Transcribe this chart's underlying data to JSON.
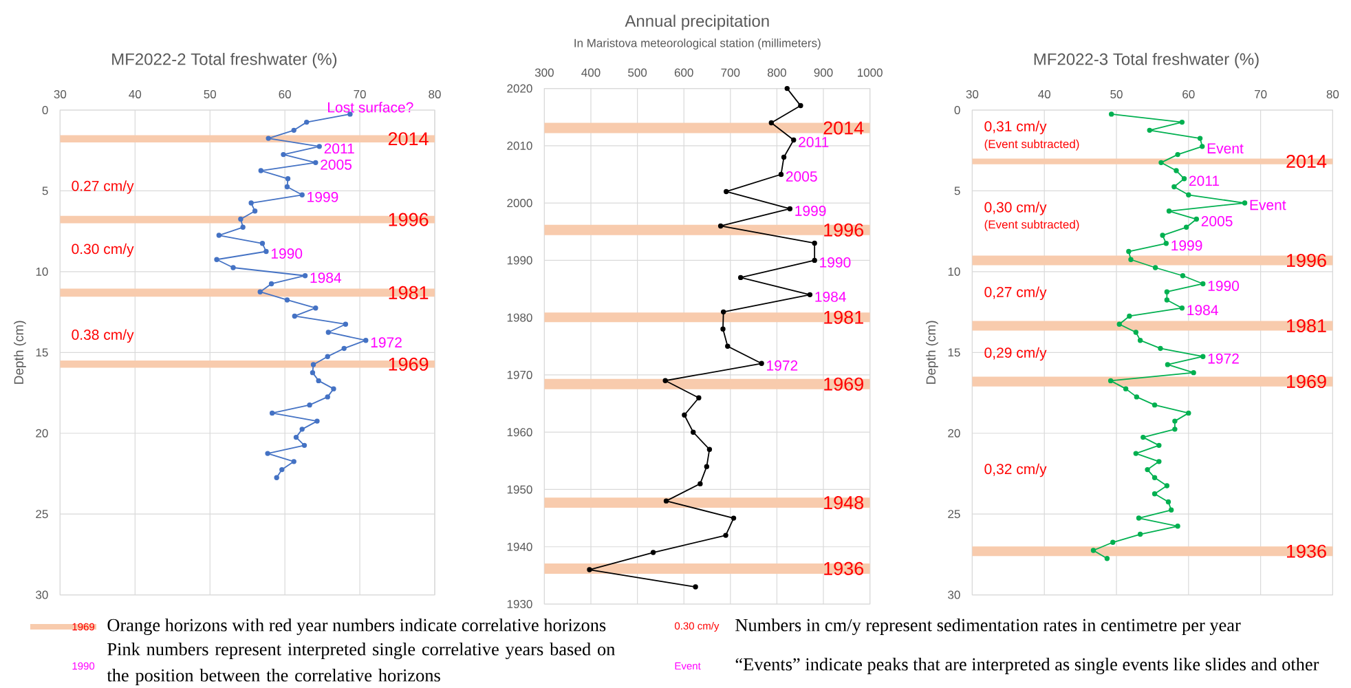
{
  "chart_data": [
    {
      "type": "line",
      "title": "MF2022-2 Total freshwater (%)",
      "ylabel": "Depth (cm)",
      "color": "#4472c4",
      "marker": "circle",
      "grid": true,
      "xlim": [
        30,
        80
      ],
      "xticks": [
        30,
        40,
        50,
        60,
        70,
        80
      ],
      "ylim": [
        30,
        0
      ],
      "yticks": [
        0,
        5,
        10,
        15,
        20,
        25,
        30
      ],
      "x": [
        68.7,
        62.9,
        61.2,
        57.8,
        64.6,
        59.8,
        64.1,
        56.8,
        60.4,
        60.3,
        62.3,
        55.5,
        56.0,
        54.1,
        54.4,
        51.2,
        57.0,
        57.5,
        50.9,
        53.1,
        62.7,
        58.2,
        56.7,
        60.3,
        64.1,
        61.3,
        68.1,
        65.8,
        70.8,
        67.9,
        65.7,
        63.8,
        63.7,
        64.5,
        66.5,
        65.7,
        63.3,
        58.3,
        64.3,
        62.3,
        61.5,
        62.6,
        57.7,
        61.2,
        59.6,
        58.9
      ],
      "values": [
        0.25,
        0.75,
        1.25,
        1.75,
        2.25,
        2.75,
        3.25,
        3.75,
        4.25,
        4.75,
        5.25,
        5.75,
        6.25,
        6.75,
        7.25,
        7.75,
        8.25,
        8.75,
        9.25,
        9.75,
        10.25,
        10.75,
        11.25,
        11.75,
        12.25,
        12.75,
        13.25,
        13.75,
        14.25,
        14.75,
        15.25,
        15.75,
        16.25,
        16.75,
        17.25,
        17.75,
        18.25,
        18.75,
        19.25,
        19.75,
        20.25,
        20.75,
        21.25,
        21.75,
        22.25,
        22.75
      ],
      "bands": [
        {
          "axis": "y",
          "from": 1.55,
          "to": 2.0,
          "label": "2014",
          "color": "#f8cbad"
        },
        {
          "axis": "y",
          "from": 6.55,
          "to": 7.0,
          "label": "1996",
          "color": "#f8cbad"
        },
        {
          "axis": "y",
          "from": 11.05,
          "to": 11.55,
          "label": "1981",
          "color": "#f8cbad"
        },
        {
          "axis": "y",
          "from": 15.5,
          "to": 15.95,
          "label": "1969",
          "color": "#f8cbad"
        }
      ],
      "annotations": [
        {
          "text": "Lost surface?",
          "x": 68.7,
          "y": 0.25
        },
        {
          "text": "2011",
          "x": 64.6,
          "y": 2.25
        },
        {
          "text": "2005",
          "x": 64.1,
          "y": 3.25
        },
        {
          "text": "1999",
          "x": 62.3,
          "y": 5.25
        },
        {
          "text": "1990",
          "x": 57.5,
          "y": 8.75
        },
        {
          "text": "1984",
          "x": 62.7,
          "y": 10.25
        },
        {
          "text": "1972",
          "x": 70.8,
          "y": 14.25
        },
        "0.27 cm/y",
        "0.30 cm/y",
        "0.38 cm/y",
        "1969",
        "Orange horizons with red year numbers indicate correlative horizons",
        "1990",
        "Pink numbers represent interpreted single correlative years based on the position between the correlative horizons",
        "0.30 cm/y",
        "Numbers in cm/y represent sedimentation rates in centimetre per year",
        "Event",
        "“Events” indicate peaks that are interpreted as single events like slides and other"
      ]
    },
    {
      "type": "line",
      "title": "Annual precipitation",
      "subtitle": "In Maristova meteorological station (millimeters)",
      "color": "#000000",
      "marker": "circle",
      "grid": true,
      "xlim": [
        300,
        1000
      ],
      "xticks": [
        300,
        400,
        500,
        600,
        700,
        800,
        900,
        1000
      ],
      "ylim": [
        1930,
        2020
      ],
      "yticks": [
        1930,
        1940,
        1950,
        1960,
        1970,
        1980,
        1990,
        2000,
        2010,
        2020
      ],
      "x": [
        822,
        851,
        788,
        836,
        815,
        809,
        691,
        828,
        679,
        881,
        881,
        722,
        871,
        685,
        684,
        694,
        767,
        560,
        632,
        601,
        620,
        655,
        649,
        635,
        562,
        707,
        690,
        534,
        397,
        625
      ],
      "values": [
        2020,
        2017,
        2014,
        2011,
        2008,
        2005,
        2002,
        1999,
        1996,
        1993,
        1990,
        1987,
        1984,
        1981,
        1978,
        1975,
        1972,
        1969,
        1966,
        1963,
        1960,
        1957,
        1954,
        1951,
        1948,
        1945,
        1942,
        1939,
        1936,
        1933
      ],
      "bands": [
        {
          "axis": "y",
          "from": 2012.2,
          "to": 2014.0,
          "label": "2014",
          "color": "#f8cbad"
        },
        {
          "axis": "y",
          "from": 1994.4,
          "to": 1996.2,
          "label": "1996",
          "color": "#f8cbad"
        },
        {
          "axis": "y",
          "from": 1979.2,
          "to": 1980.9,
          "label": "1981",
          "color": "#f8cbad"
        },
        {
          "axis": "y",
          "from": 1967.5,
          "to": 1969.3,
          "label": "1969",
          "color": "#f8cbad"
        },
        {
          "axis": "y",
          "from": 1946.8,
          "to": 1948.6,
          "label": "1948",
          "color": "#f8cbad"
        },
        {
          "axis": "y",
          "from": 1935.3,
          "to": 1937.1,
          "label": "1936",
          "color": "#f8cbad"
        }
      ],
      "annotations": [
        {
          "text": "2011",
          "x": 836,
          "y": 2011
        },
        {
          "text": "2005",
          "x": 809,
          "y": 2005
        },
        {
          "text": "1999",
          "x": 828,
          "y": 1999
        },
        {
          "text": "1990",
          "x": 881,
          "y": 1990
        },
        {
          "text": "1984",
          "x": 871,
          "y": 1984
        },
        {
          "text": "1972",
          "x": 767,
          "y": 1972
        }
      ]
    },
    {
      "type": "line",
      "title": "MF2022-3 Total freshwater (%)",
      "ylabel": "Depth (cm)",
      "color": "#00b050",
      "marker": "circle",
      "grid": true,
      "xlim": [
        30,
        80
      ],
      "xticks": [
        30,
        40,
        50,
        60,
        70,
        80
      ],
      "ylim": [
        30,
        0
      ],
      "yticks": [
        0,
        5,
        10,
        15,
        20,
        25,
        30
      ],
      "x": [
        49.3,
        59.1,
        54.6,
        61.6,
        61.9,
        58.5,
        56.2,
        58.3,
        59.4,
        58.0,
        60.0,
        67.8,
        57.3,
        61.1,
        59.7,
        56.4,
        56.9,
        51.7,
        52.0,
        55.4,
        59.2,
        62.0,
        57.0,
        57.0,
        59.1,
        51.8,
        50.4,
        52.7,
        53.3,
        56.1,
        62.0,
        57.1,
        60.7,
        49.2,
        51.3,
        52.8,
        55.3,
        60.0,
        58.1,
        58.1,
        53.7,
        55.9,
        52.7,
        55.9,
        54.3,
        55.3,
        57.0,
        55.3,
        57.2,
        57.6,
        53.1,
        58.5,
        53.3,
        49.5,
        46.8,
        48.7
      ],
      "values": [
        0.25,
        0.75,
        1.25,
        1.75,
        2.25,
        2.75,
        3.25,
        3.75,
        4.25,
        4.75,
        5.25,
        5.75,
        6.25,
        6.75,
        7.25,
        7.75,
        8.25,
        8.75,
        9.25,
        9.75,
        10.25,
        10.75,
        11.25,
        11.75,
        12.25,
        12.75,
        13.25,
        13.75,
        14.25,
        14.75,
        15.25,
        15.75,
        16.25,
        16.75,
        17.25,
        17.75,
        18.25,
        18.75,
        19.25,
        19.75,
        20.25,
        20.75,
        21.25,
        21.75,
        22.25,
        22.75,
        23.25,
        23.75,
        24.25,
        24.75,
        25.25,
        25.75,
        26.25,
        26.75,
        27.25,
        27.75
      ],
      "bands": [
        {
          "axis": "y",
          "from": 3.0,
          "to": 3.35,
          "label": "2014",
          "color": "#f8cbad"
        },
        {
          "axis": "y",
          "from": 9.0,
          "to": 9.6,
          "label": "1996",
          "color": "#f8cbad"
        },
        {
          "axis": "y",
          "from": 13.05,
          "to": 13.65,
          "label": "1981",
          "color": "#f8cbad"
        },
        {
          "axis": "y",
          "from": 16.5,
          "to": 17.1,
          "label": "1969",
          "color": "#f8cbad"
        },
        {
          "axis": "y",
          "from": 27.0,
          "to": 27.6,
          "label": "1936",
          "color": "#f8cbad"
        }
      ],
      "annotations": [
        {
          "text": "Event",
          "x": 61.9,
          "y": 2.25
        },
        {
          "text": "2011",
          "x": 59.4,
          "y": 4.25
        },
        {
          "text": "Event",
          "x": 67.8,
          "y": 5.75
        },
        {
          "text": "2005",
          "x": 61.1,
          "y": 6.75
        },
        {
          "text": "1999",
          "x": 56.9,
          "y": 8.25
        },
        {
          "text": "1990",
          "x": 62.0,
          "y": 10.75
        },
        {
          "text": "1984",
          "x": 59.1,
          "y": 12.25
        },
        {
          "text": "1972",
          "x": 62.0,
          "y": 15.25
        },
        "0,31 cm/y",
        "(Event subtracted)",
        "0,30 cm/y",
        "(Event subtracted)",
        "0,27 cm/y",
        "0,29 cm/y",
        "0,32 cm/y"
      ]
    }
  ]
}
